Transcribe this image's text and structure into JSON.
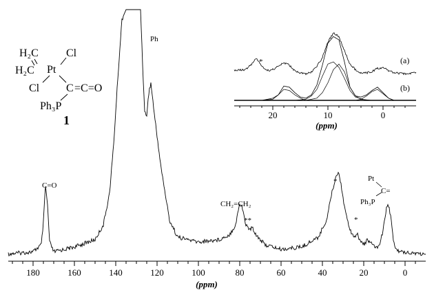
{
  "chart_data": [
    {
      "type": "line",
      "title": "",
      "xlabel": "(ppm)",
      "ylabel": "",
      "xlim": [
        192,
        -10
      ],
      "x_reversed": true,
      "ticks": [
        180,
        160,
        140,
        120,
        100,
        80,
        60,
        40,
        20,
        0
      ],
      "tick_labels": [
        "180",
        "160",
        "140",
        "120",
        "100",
        "80",
        "60",
        "40",
        "20",
        "0"
      ],
      "series": [
        {
          "x": [
            195,
            180,
            176,
            175,
            174,
            173,
            172,
            170,
            160,
            150,
            146,
            143,
            141,
            139,
            137,
            135,
            130,
            128,
            127,
            126,
            125,
            124,
            123,
            121,
            118,
            114,
            110,
            100,
            90,
            85,
            82,
            81,
            80,
            79,
            78,
            77,
            75,
            74,
            72,
            68,
            60,
            50,
            42,
            38,
            36,
            34,
            33,
            32,
            31,
            30,
            28,
            26,
            24,
            23,
            22,
            20,
            19,
            18,
            17,
            15,
            13,
            11,
            10,
            9,
            8,
            7,
            6,
            5,
            3,
            0,
            -10
          ],
          "y": [
            0.0,
            0.01,
            0.04,
            0.13,
            0.28,
            0.2,
            0.05,
            0.01,
            0.03,
            0.06,
            0.12,
            0.25,
            0.45,
            0.72,
            0.96,
            1.0,
            1.0,
            1.0,
            0.78,
            0.58,
            0.57,
            0.66,
            0.7,
            0.55,
            0.35,
            0.14,
            0.07,
            0.05,
            0.06,
            0.08,
            0.12,
            0.17,
            0.2,
            0.2,
            0.16,
            0.12,
            0.1,
            0.11,
            0.08,
            0.04,
            0.02,
            0.03,
            0.07,
            0.14,
            0.23,
            0.3,
            0.33,
            0.33,
            0.29,
            0.23,
            0.14,
            0.09,
            0.07,
            0.08,
            0.06,
            0.04,
            0.05,
            0.06,
            0.05,
            0.03,
            0.03,
            0.08,
            0.14,
            0.19,
            0.2,
            0.16,
            0.08,
            0.03,
            0.01,
            0.01,
            0.0
          ]
        }
      ],
      "annotations": [
        {
          "text": "C=O",
          "x": 174
        },
        {
          "text": "Ph",
          "x": 122
        },
        {
          "text": "CH₂=CH₂",
          "x": 80
        },
        {
          "text": "**",
          "x": 74
        },
        {
          "text": "*",
          "x": 32
        },
        {
          "text": "*",
          "x": 23
        },
        {
          "text": "Pt",
          "x": 10
        },
        {
          "text": "C=",
          "x": 10
        },
        {
          "text": "Ph₃P",
          "x": 10
        }
      ],
      "structure": {
        "compound_number": "1",
        "labels": [
          "H₂C",
          "H₂C",
          "Pt",
          "Cl",
          "Cl",
          "C",
          "=C=O",
          "Ph₃P"
        ]
      }
    },
    {
      "type": "line",
      "title": "",
      "xlabel": "(ppm)",
      "ylabel": "",
      "xlim": [
        27,
        -6
      ],
      "x_reversed": true,
      "ticks": [
        20,
        10,
        0
      ],
      "tick_labels": [
        "20",
        "10",
        "0"
      ],
      "trace_labels": [
        "(a)",
        "(b)"
      ],
      "star_label": {
        "text": "*",
        "x": 23
      },
      "series": [
        {
          "label": "(a)",
          "x": [
            27,
            25,
            24,
            23,
            22,
            21,
            20,
            19,
            18,
            17,
            16,
            15,
            14,
            13,
            12,
            11,
            10,
            9,
            8,
            7,
            6,
            5,
            4,
            3,
            2,
            1,
            0,
            -1,
            -2,
            -4,
            -6
          ],
          "y": [
            0.02,
            0.03,
            0.07,
            0.13,
            0.06,
            0.02,
            0.03,
            0.06,
            0.09,
            0.07,
            0.02,
            0.0,
            -0.01,
            0.01,
            0.06,
            0.14,
            0.28,
            0.36,
            0.33,
            0.2,
            0.08,
            0.03,
            0.0,
            0.0,
            0.01,
            0.04,
            0.05,
            0.02,
            0.0,
            -0.01,
            0.0
          ]
        },
        {
          "label": "(b) fit",
          "x": [
            27,
            22,
            20,
            19,
            18,
            17,
            16,
            15,
            14,
            13,
            12,
            11,
            10,
            9,
            8,
            7,
            6,
            5,
            4,
            3,
            2,
            1,
            0,
            -1,
            -2,
            -4,
            -6
          ],
          "y": [
            0.0,
            0.0,
            0.01,
            0.05,
            0.13,
            0.12,
            0.07,
            0.03,
            0.02,
            0.05,
            0.14,
            0.32,
            0.52,
            0.58,
            0.55,
            0.35,
            0.12,
            0.04,
            0.03,
            0.05,
            0.09,
            0.12,
            0.07,
            0.02,
            0.0,
            0.0,
            0.0
          ]
        },
        {
          "label": "(b) component 1",
          "x": [
            27,
            22,
            20,
            19,
            18,
            17,
            16,
            15,
            14,
            12,
            10,
            5,
            0,
            -6
          ],
          "y": [
            0.0,
            0.0,
            0.02,
            0.05,
            0.1,
            0.09,
            0.05,
            0.02,
            0.0,
            0.0,
            0.0,
            0.0,
            0.0,
            0.0
          ]
        },
        {
          "label": "(b) component 2",
          "x": [
            27,
            16,
            14,
            13,
            12,
            11,
            10,
            9,
            8,
            7,
            6,
            5,
            3,
            0,
            -6
          ],
          "y": [
            0.0,
            0.0,
            0.01,
            0.04,
            0.1,
            0.22,
            0.33,
            0.35,
            0.3,
            0.2,
            0.09,
            0.03,
            0.0,
            0.0,
            0.0
          ]
        },
        {
          "label": "(b) component 3",
          "x": [
            27,
            14,
            12,
            11,
            10,
            9,
            8,
            7,
            6,
            5,
            4,
            2,
            -6
          ],
          "y": [
            0.0,
            0.0,
            0.02,
            0.07,
            0.16,
            0.28,
            0.33,
            0.26,
            0.12,
            0.04,
            0.01,
            0.0,
            0.0
          ]
        },
        {
          "label": "(b) component 4",
          "x": [
            27,
            5,
            4,
            3,
            2,
            1,
            0,
            -1,
            -2,
            -4,
            -6
          ],
          "y": [
            0.0,
            0.0,
            0.01,
            0.04,
            0.08,
            0.1,
            0.06,
            0.02,
            0.0,
            0.0,
            0.0
          ]
        }
      ]
    }
  ]
}
